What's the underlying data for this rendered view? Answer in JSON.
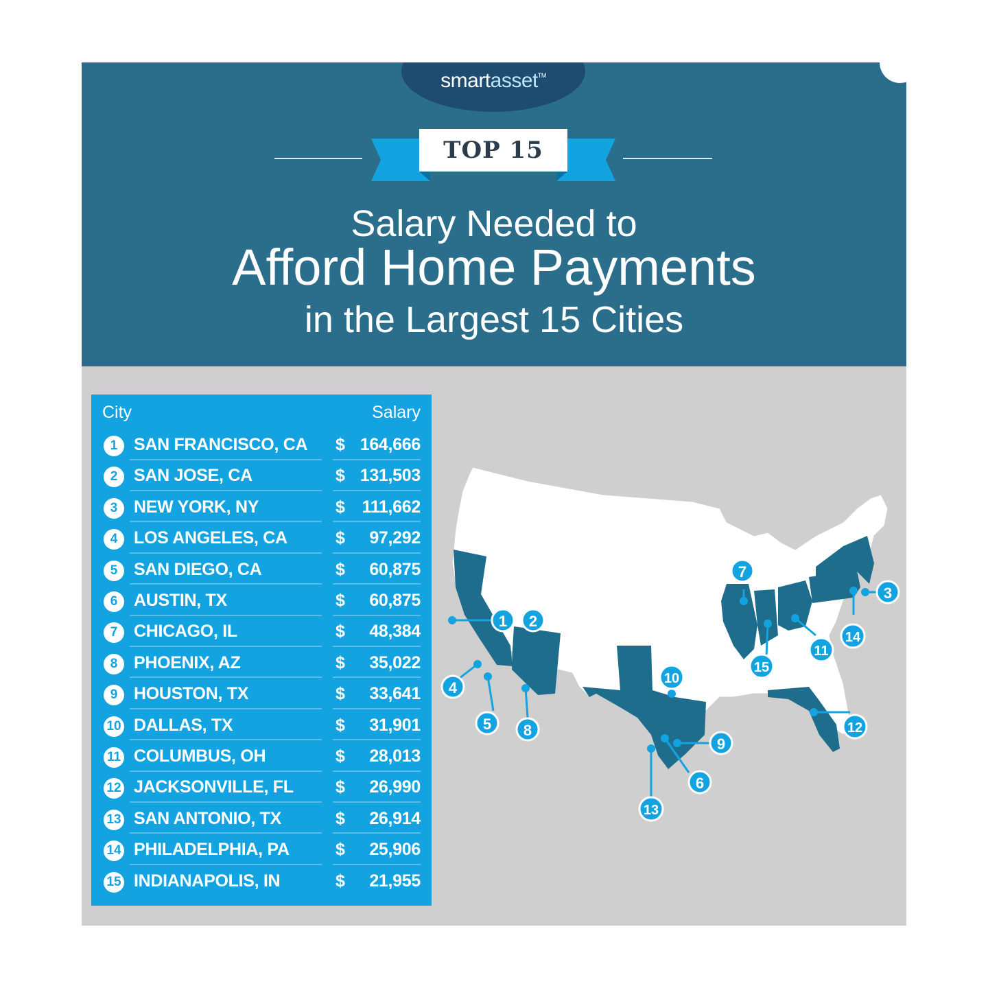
{
  "brand": {
    "name_part1": "smart",
    "name_part2": "asset",
    "tm": "TM"
  },
  "ribbon": {
    "label": "TOP 15"
  },
  "title": {
    "line1": "Salary Needed to",
    "line2": "Afford Home Payments",
    "line3": "in the Largest 15 Cities"
  },
  "table": {
    "col_city": "City",
    "col_salary": "Salary",
    "currency": "$",
    "rows": [
      {
        "rank": "1",
        "city": "SAN FRANCISCO, CA",
        "salary": "164,666"
      },
      {
        "rank": "2",
        "city": "SAN JOSE, CA",
        "salary": "131,503"
      },
      {
        "rank": "3",
        "city": "NEW YORK, NY",
        "salary": "111,662"
      },
      {
        "rank": "4",
        "city": "LOS ANGELES, CA",
        "salary": "97,292"
      },
      {
        "rank": "5",
        "city": "SAN DIEGO, CA",
        "salary": "60,875"
      },
      {
        "rank": "6",
        "city": "AUSTIN, TX",
        "salary": "60,875"
      },
      {
        "rank": "7",
        "city": "CHICAGO, IL",
        "salary": "48,384"
      },
      {
        "rank": "8",
        "city": "PHOENIX, AZ",
        "salary": "35,022"
      },
      {
        "rank": "9",
        "city": "HOUSTON, TX",
        "salary": "33,641"
      },
      {
        "rank": "10",
        "city": "DALLAS, TX",
        "salary": "31,901"
      },
      {
        "rank": "11",
        "city": "COLUMBUS, OH",
        "salary": "28,013"
      },
      {
        "rank": "12",
        "city": "JACKSONVILLE, FL",
        "salary": "26,990"
      },
      {
        "rank": "13",
        "city": "SAN ANTONIO, TX",
        "salary": "26,914"
      },
      {
        "rank": "14",
        "city": "PHILADELPHIA, PA",
        "salary": "25,906"
      },
      {
        "rank": "15",
        "city": "INDIANAPOLIS, IN",
        "salary": "21,955"
      }
    ]
  },
  "map_labels": {
    "l1": "1",
    "l2": "2",
    "l3": "3",
    "l4": "4",
    "l5": "5",
    "l6": "6",
    "l7": "7",
    "l8": "8",
    "l9": "9",
    "l10": "10",
    "l11": "11",
    "l12": "12",
    "l13": "13",
    "l14": "14",
    "l15": "15"
  },
  "colors": {
    "header": "#2b6e8c",
    "table": "#12a3e0",
    "highlight_state": "#1f6d8c",
    "marker": "#12a3e0",
    "background": "#cfcfcf"
  },
  "icons": {
    "scroll_up": "chevron-up-icon"
  }
}
